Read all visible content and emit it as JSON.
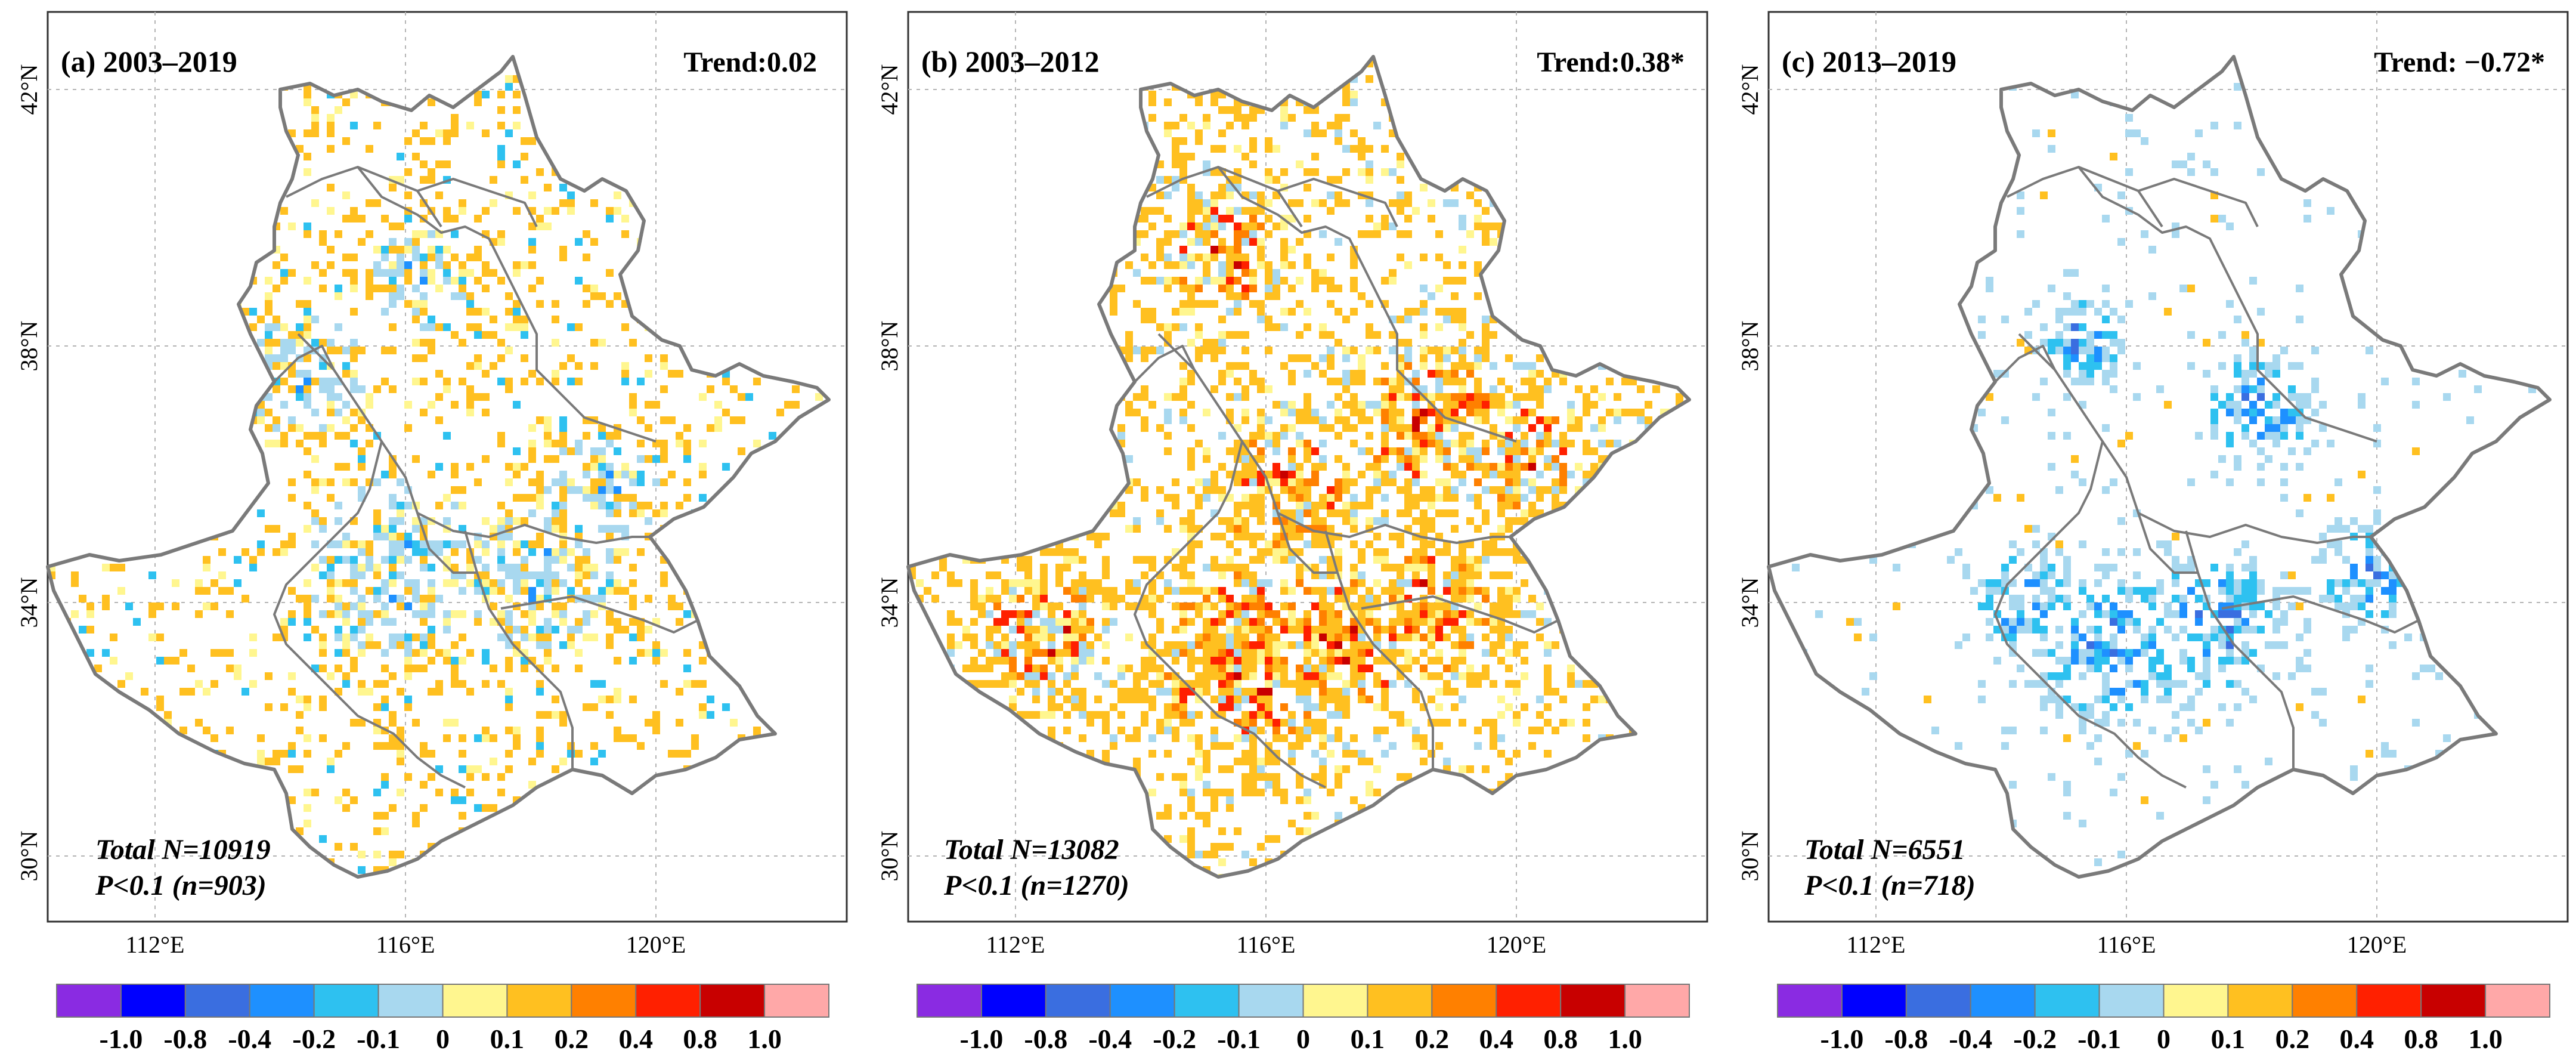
{
  "figure": {
    "panels": [
      {
        "label": "(a) 2003–2019",
        "trend": "Trend:0.02",
        "total": "Total N=10919",
        "pval": "P<0.1 (n=903)",
        "pattern": "mixed"
      },
      {
        "label": "(b) 2003–2012",
        "trend": "Trend:0.38*",
        "total": "Total N=13082",
        "pval": "P<0.1 (n=1270)",
        "pattern": "increase"
      },
      {
        "label": "(c) 2013–2019",
        "trend": "Trend: −0.72*",
        "total": "Total N=6551",
        "pval": "P<0.1 (n=718)",
        "pattern": "decrease"
      }
    ],
    "lon_ticks": [
      "112°E",
      "116°E",
      "120°E"
    ],
    "lat_ticks": [
      "42°N",
      "38°N",
      "34°N",
      "30°N"
    ],
    "colorbar": {
      "colors": [
        "#8a2be2",
        "#0000ff",
        "#3a6ee0",
        "#1e90ff",
        "#2ec1f0",
        "#a8d8ef",
        "#fff68f",
        "#ffc020",
        "#ff8000",
        "#ff2000",
        "#c80000",
        "#ffa8a8"
      ],
      "labels": [
        "-1.0",
        "-0.8",
        "-0.4",
        "-0.2",
        "-0.1",
        "0",
        "0.1",
        "0.2",
        "0.4",
        "0.8",
        "1.0"
      ]
    },
    "boundary_color": "#7a7a7a"
  }
}
